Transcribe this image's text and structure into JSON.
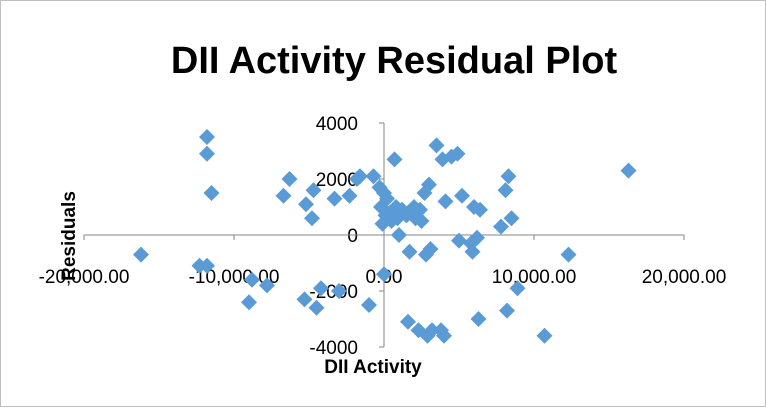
{
  "chart_data": {
    "type": "scatter",
    "title": "DII Activity Residual Plot",
    "xlabel": "DII Activity",
    "ylabel": "Residuals",
    "xlim": [
      -20000,
      20000
    ],
    "ylim": [
      -4000,
      4000
    ],
    "x_ticks": [
      -20000,
      -10000,
      0,
      10000,
      20000
    ],
    "x_tick_labels": [
      "-20,000.00",
      "-10,000.00",
      "0.00",
      "10,000.00",
      "20,000.00"
    ],
    "y_ticks": [
      -4000,
      -2000,
      0,
      2000,
      4000
    ],
    "y_tick_labels": [
      "-4000",
      "-2000",
      "0",
      "2000",
      "4000"
    ],
    "grid": false,
    "legend": "none",
    "marker_color": "#5b9bd5",
    "points": [
      {
        "x": -16200,
        "y": -700
      },
      {
        "x": -12300,
        "y": -1100
      },
      {
        "x": -11800,
        "y": -1100
      },
      {
        "x": -11800,
        "y": 3500
      },
      {
        "x": -11800,
        "y": 2900
      },
      {
        "x": -11500,
        "y": 1500
      },
      {
        "x": -9000,
        "y": -2400
      },
      {
        "x": -8800,
        "y": -1600
      },
      {
        "x": -7800,
        "y": -1800
      },
      {
        "x": -6700,
        "y": 1400
      },
      {
        "x": -6300,
        "y": 2000
      },
      {
        "x": -5300,
        "y": -2300
      },
      {
        "x": -5200,
        "y": 1100
      },
      {
        "x": -4800,
        "y": 600
      },
      {
        "x": -4700,
        "y": 1600
      },
      {
        "x": -4500,
        "y": -2600
      },
      {
        "x": -4200,
        "y": -1900
      },
      {
        "x": -3300,
        "y": 1300
      },
      {
        "x": -3000,
        "y": -2000
      },
      {
        "x": -2300,
        "y": 1400
      },
      {
        "x": -1800,
        "y": 2000
      },
      {
        "x": -1600,
        "y": 2100
      },
      {
        "x": -1000,
        "y": -2500
      },
      {
        "x": -700,
        "y": 2100
      },
      {
        "x": -300,
        "y": 1700
      },
      {
        "x": -200,
        "y": 1000
      },
      {
        "x": -100,
        "y": 400
      },
      {
        "x": 0,
        "y": -1400
      },
      {
        "x": 0,
        "y": 1500
      },
      {
        "x": 100,
        "y": 700
      },
      {
        "x": 200,
        "y": 1300
      },
      {
        "x": 400,
        "y": 800
      },
      {
        "x": 500,
        "y": 500
      },
      {
        "x": 700,
        "y": 2700
      },
      {
        "x": 800,
        "y": 1000
      },
      {
        "x": 900,
        "y": 600
      },
      {
        "x": 1000,
        "y": 0
      },
      {
        "x": 1200,
        "y": 900
      },
      {
        "x": 1400,
        "y": 800
      },
      {
        "x": 1500,
        "y": 700
      },
      {
        "x": 1600,
        "y": -3100
      },
      {
        "x": 1700,
        "y": -600
      },
      {
        "x": 2000,
        "y": 1000
      },
      {
        "x": 2100,
        "y": 600
      },
      {
        "x": 2300,
        "y": -3400
      },
      {
        "x": 2400,
        "y": 900
      },
      {
        "x": 2500,
        "y": 500
      },
      {
        "x": 2700,
        "y": 1500
      },
      {
        "x": 2800,
        "y": -700
      },
      {
        "x": 2900,
        "y": -3600
      },
      {
        "x": 3000,
        "y": 1800
      },
      {
        "x": 3100,
        "y": -500
      },
      {
        "x": 3200,
        "y": -3400
      },
      {
        "x": 3500,
        "y": 3200
      },
      {
        "x": 3800,
        "y": -3400
      },
      {
        "x": 3900,
        "y": 2700
      },
      {
        "x": 4000,
        "y": -3600
      },
      {
        "x": 4100,
        "y": 1200
      },
      {
        "x": 4500,
        "y": 2800
      },
      {
        "x": 4900,
        "y": 2900
      },
      {
        "x": 5000,
        "y": -200
      },
      {
        "x": 5200,
        "y": 1400
      },
      {
        "x": 5800,
        "y": -300
      },
      {
        "x": 5900,
        "y": -600
      },
      {
        "x": 6000,
        "y": 1000
      },
      {
        "x": 6200,
        "y": -100
      },
      {
        "x": 6300,
        "y": -3000
      },
      {
        "x": 6400,
        "y": 900
      },
      {
        "x": 7800,
        "y": 300
      },
      {
        "x": 8100,
        "y": 1600
      },
      {
        "x": 8200,
        "y": -2700
      },
      {
        "x": 8300,
        "y": 2100
      },
      {
        "x": 8500,
        "y": 600
      },
      {
        "x": 8900,
        "y": -1900
      },
      {
        "x": 10700,
        "y": -3600
      },
      {
        "x": 12300,
        "y": -700
      },
      {
        "x": 16300,
        "y": 2300
      }
    ]
  }
}
